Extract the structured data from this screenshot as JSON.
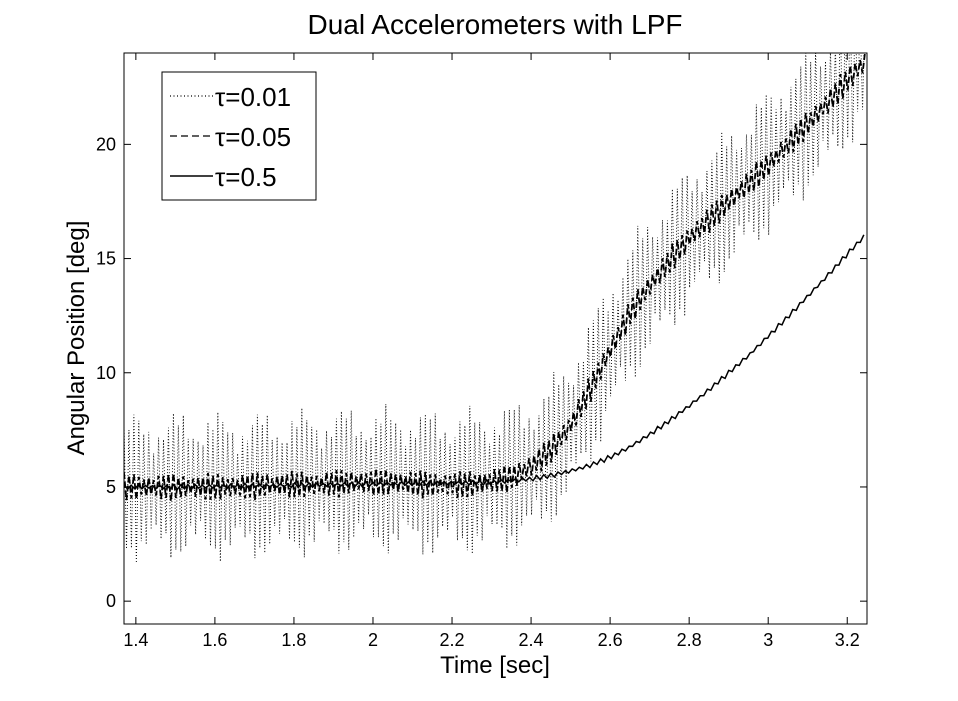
{
  "chart_data": {
    "type": "line",
    "title": "Dual Accelerometers with LPF",
    "xlabel": "Time [sec]",
    "ylabel": "Angular Position [deg]",
    "xlim": [
      1.37,
      3.25
    ],
    "ylim": [
      -1,
      24
    ],
    "x_ticks": [
      1.4,
      1.6,
      1.8,
      2,
      2.2,
      2.4,
      2.6,
      2.8,
      3,
      3.2
    ],
    "x_tick_labels": [
      "1.4",
      "1.6",
      "1.8",
      "2",
      "2.2",
      "2.4",
      "2.6",
      "2.8",
      "3",
      "3.2"
    ],
    "y_ticks": [
      0,
      5,
      10,
      15,
      20
    ],
    "y_tick_labels": [
      "0",
      "5",
      "10",
      "15",
      "20"
    ],
    "grid": false,
    "legend_position": "top-left",
    "series": [
      {
        "name": "τ=0.01",
        "style": "dotted",
        "color": "#000000",
        "x": [
          1.37,
          1.45,
          1.55,
          1.65,
          1.75,
          1.85,
          1.95,
          2.05,
          2.15,
          2.25,
          2.35,
          2.4,
          2.45,
          2.5,
          2.55,
          2.6,
          2.65,
          2.7,
          2.75,
          2.8,
          2.85,
          2.9,
          2.95,
          3.0,
          3.05,
          3.1,
          3.15,
          3.2,
          3.25
        ],
        "y": [
          5.0,
          5.0,
          5.1,
          5.0,
          5.1,
          5.2,
          5.3,
          5.3,
          5.2,
          5.2,
          5.5,
          5.8,
          6.5,
          7.6,
          9.2,
          11.0,
          12.6,
          13.8,
          14.9,
          15.9,
          16.7,
          17.5,
          18.4,
          19.2,
          20.1,
          21.0,
          21.9,
          23.0,
          24.0
        ],
        "amplitude": 2.4
      },
      {
        "name": "τ=0.05",
        "style": "dashed",
        "color": "#000000",
        "x": [
          1.37,
          1.45,
          1.55,
          1.65,
          1.75,
          1.85,
          1.95,
          2.05,
          2.15,
          2.25,
          2.35,
          2.4,
          2.45,
          2.5,
          2.55,
          2.6,
          2.65,
          2.7,
          2.75,
          2.8,
          2.85,
          2.9,
          2.95,
          3.0,
          3.05,
          3.1,
          3.15,
          3.2,
          3.25
        ],
        "y": [
          5.0,
          5.0,
          5.0,
          5.0,
          5.1,
          5.1,
          5.2,
          5.2,
          5.1,
          5.1,
          5.4,
          5.9,
          6.6,
          7.7,
          9.3,
          11.0,
          12.6,
          13.8,
          14.9,
          15.9,
          16.7,
          17.5,
          18.3,
          19.1,
          20.0,
          20.9,
          21.8,
          22.8,
          23.7
        ],
        "amplitude": 0.45
      },
      {
        "name": "τ=0.5",
        "style": "solid",
        "color": "#000000",
        "x": [
          1.37,
          1.5,
          1.7,
          1.9,
          2.1,
          2.3,
          2.4,
          2.45,
          2.5,
          2.55,
          2.6,
          2.65,
          2.7,
          2.75,
          2.8,
          2.85,
          2.9,
          2.95,
          3.0,
          3.05,
          3.1,
          3.15,
          3.2,
          3.25
        ],
        "y": [
          5.0,
          5.0,
          5.05,
          5.1,
          5.15,
          5.2,
          5.35,
          5.5,
          5.7,
          5.95,
          6.3,
          6.75,
          7.3,
          7.9,
          8.55,
          9.25,
          10.0,
          10.75,
          11.6,
          12.45,
          13.35,
          14.25,
          15.2,
          16.1
        ],
        "amplitude": 0.08
      }
    ]
  }
}
